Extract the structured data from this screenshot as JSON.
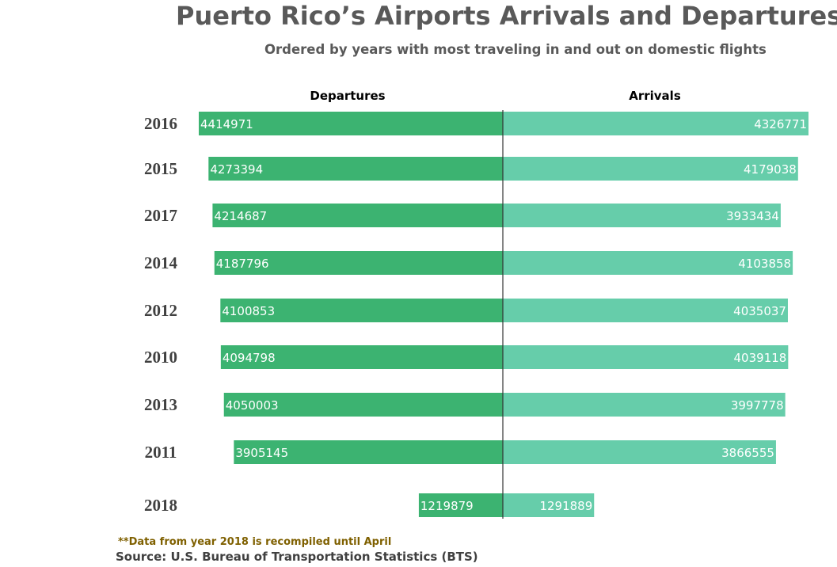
{
  "chart_data": {
    "type": "bar",
    "title": "Puerto Rico’s Airports Arrivals and Departures",
    "subtitle": "Ordered by years with most traveling in and out on domestic flights",
    "categories": [
      "2016",
      "2015",
      "2017",
      "2014",
      "2012",
      "2010",
      "2013",
      "2011",
      "2018"
    ],
    "series": [
      {
        "name": "Departures",
        "color": "#3cb371",
        "values": [
          4414971,
          4273394,
          4214687,
          4187796,
          4100853,
          4094798,
          4050003,
          3905145,
          1219879
        ]
      },
      {
        "name": "Arrivals",
        "color": "#66cdaa",
        "values": [
          4326771,
          4179038,
          3933434,
          4103858,
          4035037,
          4039118,
          3997778,
          3866555,
          1291889
        ]
      }
    ],
    "orientation": "horizontal-diverging",
    "xlim": [
      -4414971,
      4326771
    ],
    "grid": false
  },
  "note": "**Data from year 2018 is recompiled until April",
  "source": "Source: U.S. Bureau of Transportation Statistics (BTS)"
}
